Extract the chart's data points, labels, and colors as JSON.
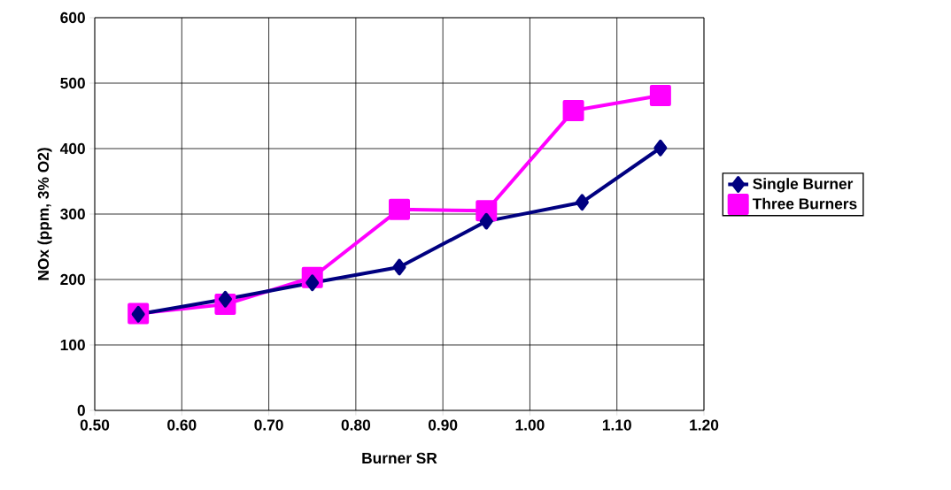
{
  "chart_data": {
    "type": "line",
    "xlabel": "Burner SR",
    "ylabel": "NOx (ppm, 3% O2)",
    "xlim": [
      0.5,
      1.2
    ],
    "xticks": [
      {
        "value": 0.5,
        "label": "0.50"
      },
      {
        "value": 0.6,
        "label": "0.60"
      },
      {
        "value": 0.7,
        "label": "0.70"
      },
      {
        "value": 0.8,
        "label": "0.80"
      },
      {
        "value": 0.9,
        "label": "0.90"
      },
      {
        "value": 1.0,
        "label": "1.00"
      },
      {
        "value": 1.1,
        "label": "1.10"
      },
      {
        "value": 1.2,
        "label": "1.20"
      }
    ],
    "ylim": [
      0,
      600
    ],
    "yticks": [
      0,
      100,
      200,
      300,
      400,
      500,
      600
    ],
    "grid": true,
    "legend": "right",
    "series": [
      {
        "name": "Single Burner",
        "color": "#000080",
        "marker": "diamond",
        "x": [
          0.55,
          0.65,
          0.75,
          0.85,
          0.95,
          1.06,
          1.15
        ],
        "values": [
          147,
          170,
          195,
          219,
          289,
          318,
          401
        ]
      },
      {
        "name": "Three Burners",
        "color": "#ff00ff",
        "marker": "square",
        "x": [
          0.55,
          0.65,
          0.75,
          0.85,
          0.95,
          1.05,
          1.15
        ],
        "values": [
          148,
          162,
          203,
          307,
          305,
          458,
          481
        ]
      }
    ]
  }
}
